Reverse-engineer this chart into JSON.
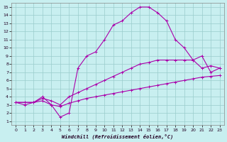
{
  "xlabel": "Windchill (Refroidissement éolien,°C)",
  "xlim": [
    -0.5,
    23.5
  ],
  "ylim": [
    0.5,
    15.5
  ],
  "xticks": [
    0,
    1,
    2,
    3,
    4,
    5,
    6,
    7,
    8,
    9,
    10,
    11,
    12,
    13,
    14,
    15,
    16,
    17,
    18,
    19,
    20,
    21,
    22,
    23
  ],
  "yticks": [
    1,
    2,
    3,
    4,
    5,
    6,
    7,
    8,
    9,
    10,
    11,
    12,
    13,
    14,
    15
  ],
  "background_color": "#c8eff0",
  "grid_color": "#99cccc",
  "line_color": "#aa00aa",
  "line1_x": [
    0,
    1,
    2,
    3,
    4,
    5,
    6,
    7,
    8,
    9,
    10,
    11,
    12,
    13,
    14,
    15,
    16,
    17,
    18,
    19,
    20,
    21,
    22,
    23
  ],
  "line1_y": [
    3.3,
    3.3,
    3.3,
    3.5,
    3.0,
    2.8,
    3.2,
    3.5,
    3.8,
    4.0,
    4.2,
    4.4,
    4.6,
    4.8,
    5.0,
    5.2,
    5.4,
    5.6,
    5.8,
    6.0,
    6.2,
    6.4,
    6.5,
    6.6
  ],
  "line2_x": [
    0,
    1,
    2,
    3,
    4,
    5,
    6,
    7,
    8,
    9,
    10,
    11,
    12,
    13,
    14,
    15,
    16,
    17,
    18,
    19,
    20,
    21,
    22,
    23
  ],
  "line2_y": [
    3.3,
    3.3,
    3.3,
    3.8,
    3.5,
    3.0,
    4.0,
    4.5,
    5.0,
    5.5,
    6.0,
    6.5,
    7.0,
    7.5,
    8.0,
    8.2,
    8.5,
    8.5,
    8.5,
    8.5,
    8.5,
    7.5,
    7.8,
    7.5
  ],
  "line3_x": [
    0,
    1,
    2,
    3,
    4,
    5,
    6,
    7,
    8,
    9,
    10,
    11,
    12,
    13,
    14,
    15,
    16,
    17,
    18,
    19,
    20,
    21,
    22,
    23
  ],
  "line3_y": [
    3.3,
    3.0,
    3.3,
    4.0,
    3.0,
    1.5,
    2.0,
    7.5,
    9.0,
    9.5,
    11.0,
    12.8,
    13.3,
    14.3,
    15.0,
    15.0,
    14.3,
    13.3,
    11.0,
    10.0,
    8.5,
    9.0,
    7.0,
    7.5
  ]
}
